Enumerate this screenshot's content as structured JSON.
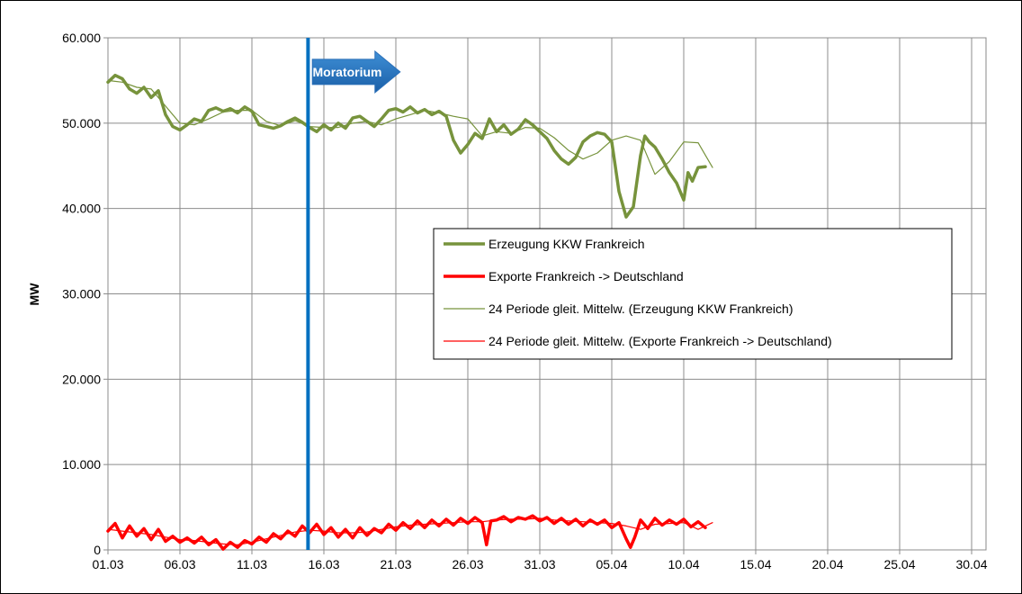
{
  "chart_data": {
    "type": "line",
    "title": "",
    "xlabel": "",
    "ylabel": "MW",
    "ylim": [
      0,
      60000
    ],
    "yticks": [
      0,
      10000,
      20000,
      30000,
      40000,
      50000,
      60000
    ],
    "ytick_labels": [
      "0",
      "10.000",
      "20.000",
      "30.000",
      "40.000",
      "50.000",
      "60.000"
    ],
    "xlim": [
      0,
      61
    ],
    "xticks": [
      0,
      5,
      10,
      15,
      20,
      25,
      30,
      35,
      40,
      45,
      50,
      55,
      60
    ],
    "xtick_labels": [
      "01.03",
      "06.03",
      "11.03",
      "16.03",
      "21.03",
      "26.03",
      "31.03",
      "05.04",
      "10.04",
      "15.04",
      "20.04",
      "25.04",
      "30.04"
    ],
    "x_unit": "days since 01.03",
    "grid": true,
    "legend_position": "center-right",
    "series": [
      {
        "name": "Erzeugung KKW Frankreich",
        "color": "#77933c",
        "style": "thick",
        "x": [
          0,
          0.5,
          1,
          1.5,
          2,
          2.5,
          3,
          3.5,
          4,
          4.5,
          5,
          5.5,
          6,
          6.5,
          7,
          7.5,
          8,
          8.5,
          9,
          9.5,
          10,
          10.5,
          11,
          11.5,
          12,
          12.5,
          13,
          13.5,
          14,
          14.5,
          15,
          15.5,
          16,
          16.5,
          17,
          17.5,
          18,
          18.5,
          19,
          19.5,
          20,
          20.5,
          21,
          21.5,
          22,
          22.5,
          23,
          23.5,
          24,
          24.5,
          25,
          25.5,
          26,
          26.5,
          27,
          27.5,
          28,
          28.5,
          29,
          29.5,
          30,
          30.5,
          31,
          31.5,
          32,
          32.5,
          33,
          33.5,
          34,
          34.5,
          35,
          35.5,
          36,
          36.5,
          37,
          37.3,
          37.6,
          38,
          38.5,
          39,
          39.5,
          40,
          40.3,
          40.6,
          41,
          41.5
        ],
        "values": [
          54800,
          55600,
          55200,
          54000,
          53500,
          54200,
          53000,
          53800,
          51000,
          49600,
          49200,
          49800,
          50500,
          50200,
          51500,
          51800,
          51400,
          51700,
          51200,
          51900,
          51400,
          49800,
          49600,
          49400,
          49700,
          50200,
          50600,
          50100,
          49500,
          49000,
          49800,
          49200,
          50000,
          49400,
          50600,
          50800,
          50200,
          49600,
          50500,
          51500,
          51700,
          51300,
          51900,
          51200,
          51600,
          51000,
          51400,
          50800,
          48000,
          46500,
          47500,
          48800,
          48200,
          50500,
          49000,
          49800,
          48700,
          49300,
          50400,
          49800,
          49000,
          48200,
          46800,
          45800,
          45200,
          46000,
          47800,
          48500,
          48900,
          48700,
          47800,
          42000,
          39000,
          40200,
          46200,
          48500,
          47800,
          47200,
          45800,
          44200,
          43000,
          41000,
          44200,
          43200,
          44800,
          44900
        ]
      },
      {
        "name": "Exporte Frankreich -> Deutschland",
        "color": "#ff0000",
        "style": "thick",
        "x": [
          0,
          0.5,
          1,
          1.5,
          2,
          2.5,
          3,
          3.5,
          4,
          4.5,
          5,
          5.5,
          6,
          6.5,
          7,
          7.5,
          8,
          8.5,
          9,
          9.5,
          10,
          10.5,
          11,
          11.5,
          12,
          12.5,
          13,
          13.5,
          14,
          14.5,
          15,
          15.5,
          16,
          16.5,
          17,
          17.5,
          18,
          18.5,
          19,
          19.5,
          20,
          20.5,
          21,
          21.5,
          22,
          22.5,
          23,
          23.5,
          24,
          24.5,
          25,
          25.5,
          26,
          26.3,
          26.6,
          27,
          27.5,
          28,
          28.5,
          29,
          29.5,
          30,
          30.5,
          31,
          31.5,
          32,
          32.5,
          33,
          33.5,
          34,
          34.5,
          35,
          35.5,
          36,
          36.3,
          36.6,
          37,
          37.5,
          38,
          38.5,
          39,
          39.5,
          40,
          40.5,
          41,
          41.5
        ],
        "values": [
          2200,
          3100,
          1400,
          2800,
          1600,
          2500,
          1200,
          2400,
          1000,
          1600,
          900,
          1400,
          800,
          1500,
          600,
          1200,
          100,
          900,
          300,
          1100,
          700,
          1500,
          900,
          1900,
          1300,
          2200,
          1600,
          2800,
          2000,
          3000,
          1800,
          2600,
          1500,
          2400,
          1400,
          2600,
          1700,
          2500,
          2000,
          3000,
          2300,
          3200,
          2500,
          3400,
          2600,
          3500,
          2800,
          3600,
          2900,
          3700,
          3100,
          3800,
          3200,
          600,
          3400,
          3500,
          3900,
          3300,
          3800,
          3600,
          4000,
          3400,
          3800,
          3100,
          3700,
          3000,
          3600,
          2800,
          3500,
          3000,
          3500,
          2600,
          3200,
          1300,
          300,
          1500,
          3500,
          2500,
          3700,
          2900,
          3500,
          3000,
          3600,
          2700,
          3300,
          2600
        ]
      },
      {
        "name": "24 Periode gleit. Mittelw. (Erzeugung KKW Frankreich)",
        "color": "#77933c",
        "style": "thin",
        "x": [
          0,
          1,
          2,
          3,
          4,
          5,
          6,
          7,
          8,
          9,
          10,
          11,
          12,
          13,
          14,
          15,
          16,
          17,
          18,
          19,
          20,
          21,
          22,
          23,
          24,
          25,
          26,
          27,
          28,
          29,
          30,
          31,
          32,
          33,
          34,
          35,
          36,
          37,
          38,
          39,
          40,
          41,
          42
        ],
        "values": [
          55000,
          54800,
          54200,
          54000,
          52000,
          50000,
          49800,
          50500,
          51300,
          51500,
          51500,
          50200,
          49700,
          50300,
          49600,
          49500,
          49500,
          50000,
          50200,
          49800,
          50500,
          51000,
          51500,
          51200,
          50800,
          50500,
          48500,
          49000,
          48800,
          49500,
          49400,
          48300,
          46800,
          45800,
          46500,
          48000,
          48500,
          48000,
          44000,
          45500,
          47800,
          47700,
          44800
        ]
      },
      {
        "name": "24 Periode gleit. Mittelw. (Exporte Frankreich -> Deutschland)",
        "color": "#ff0000",
        "style": "thin",
        "x": [
          0,
          1,
          2,
          3,
          4,
          5,
          6,
          7,
          8,
          9,
          10,
          11,
          12,
          13,
          14,
          15,
          16,
          17,
          18,
          19,
          20,
          21,
          22,
          23,
          24,
          25,
          26,
          27,
          28,
          29,
          30,
          31,
          32,
          33,
          34,
          35,
          36,
          37,
          38,
          39,
          40,
          41,
          42
        ],
        "values": [
          2400,
          2200,
          2000,
          1800,
          1500,
          1200,
          1100,
          900,
          700,
          600,
          900,
          1300,
          1700,
          2100,
          2300,
          2200,
          2000,
          2000,
          2100,
          2400,
          2700,
          2900,
          3000,
          3100,
          3200,
          3300,
          3300,
          3500,
          3600,
          3600,
          3700,
          3500,
          3400,
          3300,
          3200,
          3100,
          2800,
          2400,
          3000,
          3100,
          3200,
          2400,
          3200
        ]
      }
    ],
    "annotations": [
      {
        "type": "vline",
        "x": 13.9,
        "color": "#0070c0"
      },
      {
        "type": "arrow",
        "label": "Moratorium",
        "color": "#0070c0",
        "x_start": 14.2,
        "x_end": 20.3,
        "y": 56000
      }
    ]
  }
}
